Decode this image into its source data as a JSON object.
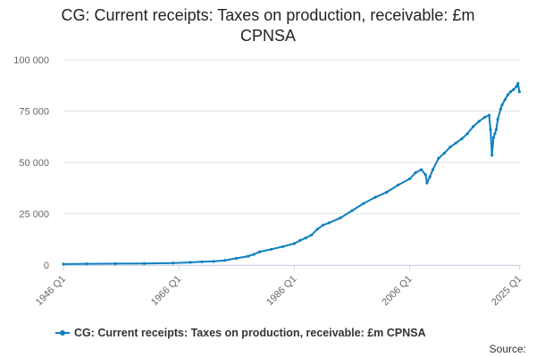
{
  "title_line1": "CG: Current receipts: Taxes on production, receivable: £m",
  "title_line2": "CPNSA",
  "legend_label": "CG: Current receipts: Taxes on production, receivable: £m CPNSA",
  "source_label": "Source:",
  "colors": {
    "series": "#0e7fc0",
    "grid": "#e6e6e6",
    "axis": "#ccd6eb",
    "text": "#666666"
  },
  "chart_data": {
    "type": "line",
    "title": "CG: Current receipts: Taxes on production, receivable: £m CPNSA",
    "xlabel": "",
    "ylabel": "",
    "x_range": [
      1946,
      2025.25
    ],
    "ylim": [
      0,
      100000
    ],
    "yticks": [
      0,
      25000,
      50000,
      75000,
      100000
    ],
    "ytick_labels": [
      "0",
      "25 000",
      "50 000",
      "75 000",
      "100 000"
    ],
    "xtick_labels": [
      "1946 Q1",
      "1966 Q1",
      "1986 Q1",
      "2006 Q1",
      "2025 Q1"
    ],
    "grid": true,
    "legend": "bottom",
    "frequency": "quarterly",
    "series": [
      {
        "name": "CG: Current receipts: Taxes on production, receivable: £m CPNSA",
        "points": [
          [
            "1946 Q1",
            500
          ],
          [
            "1950 Q1",
            600
          ],
          [
            "1955 Q1",
            700
          ],
          [
            "1960 Q1",
            800
          ],
          [
            "1965 Q1",
            1000
          ],
          [
            "1968 Q1",
            1300
          ],
          [
            "1970 Q1",
            1600
          ],
          [
            "1972 Q1",
            1800
          ],
          [
            "1974 Q1",
            2300
          ],
          [
            "1976 Q1",
            3300
          ],
          [
            "1978 Q1",
            4300
          ],
          [
            "1979 Q1",
            5200
          ],
          [
            "1980 Q1",
            6500
          ],
          [
            "1982 Q1",
            7700
          ],
          [
            "1984 Q1",
            9000
          ],
          [
            "1986 Q1",
            10500
          ],
          [
            "1987 Q1",
            12000
          ],
          [
            "1988 Q1",
            13200
          ],
          [
            "1989 Q1",
            14700
          ],
          [
            "1990 Q1",
            17500
          ],
          [
            "1991 Q1",
            19500
          ],
          [
            "1992 Q1",
            20500
          ],
          [
            "1994 Q1",
            23000
          ],
          [
            "1996 Q1",
            26500
          ],
          [
            "1998 Q1",
            30000
          ],
          [
            "2000 Q1",
            33000
          ],
          [
            "2002 Q1",
            35500
          ],
          [
            "2004 Q1",
            39000
          ],
          [
            "2006 Q1",
            42000
          ],
          [
            "2007 Q1",
            45000
          ],
          [
            "2008 Q1",
            46500
          ],
          [
            "2008 Q4",
            44000
          ],
          [
            "2009 Q1",
            40000
          ],
          [
            "2009 Q3",
            43000
          ],
          [
            "2010 Q1",
            46500
          ],
          [
            "2011 Q1",
            52000
          ],
          [
            "2012 Q1",
            54500
          ],
          [
            "2013 Q1",
            57500
          ],
          [
            "2014 Q1",
            59500
          ],
          [
            "2015 Q1",
            61500
          ],
          [
            "2016 Q1",
            64000
          ],
          [
            "2017 Q1",
            67500
          ],
          [
            "2018 Q1",
            70000
          ],
          [
            "2019 Q1",
            72000
          ],
          [
            "2019 Q4",
            73000
          ],
          [
            "2020 Q1",
            66000
          ],
          [
            "2020 Q2",
            53500
          ],
          [
            "2020 Q3",
            62000
          ],
          [
            "2020 Q4",
            64000
          ],
          [
            "2021 Q1",
            66000
          ],
          [
            "2021 Q2",
            71000
          ],
          [
            "2021 Q4",
            76000
          ],
          [
            "2022 Q1",
            78000
          ],
          [
            "2022 Q3",
            80500
          ],
          [
            "2023 Q1",
            83000
          ],
          [
            "2023 Q3",
            84500
          ],
          [
            "2024 Q1",
            85500
          ],
          [
            "2024 Q3",
            87000
          ],
          [
            "2024 Q4",
            88500
          ],
          [
            "2025 Q1",
            84500
          ]
        ]
      }
    ]
  }
}
